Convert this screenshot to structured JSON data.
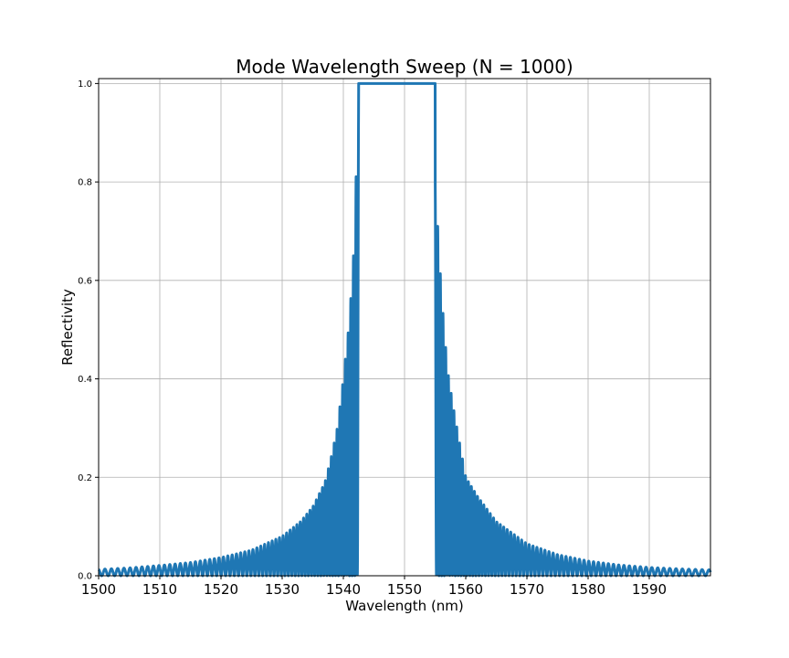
{
  "chart_data": {
    "type": "line",
    "title": "Mode Wavelength Sweep (N = 1000)",
    "xlabel": "Wavelength (nm)",
    "ylabel": "Reflectivity",
    "xlim": [
      1500,
      1600
    ],
    "ylim": [
      0,
      1.01
    ],
    "x_ticks": [
      1500,
      1510,
      1520,
      1530,
      1540,
      1550,
      1560,
      1570,
      1580,
      1590
    ],
    "x_tick_labels": [
      "1500",
      "1510",
      "1520",
      "1530",
      "1540",
      "1550",
      "1560",
      "1570",
      "1580",
      "1590"
    ],
    "y_ticks": [
      0.0,
      0.2,
      0.4,
      0.6,
      0.8,
      1.0
    ],
    "y_tick_labels": [
      "0.0",
      "0.2",
      "0.4",
      "0.6",
      "0.8",
      "1.0"
    ],
    "grid": true,
    "line_color": "#1f77b4",
    "series": [
      {
        "stopband": [
          1542.5,
          1555.0
        ],
        "plateau_value": 1.0,
        "sidelobe_peaks": {
          "x": [
            1500,
            1505,
            1510,
            1515,
            1520,
            1525,
            1530,
            1533,
            1535,
            1537,
            1538,
            1539,
            1540,
            1541,
            1541.8,
            1542.4,
            1555.1,
            1555.6,
            1556.3,
            1557,
            1558,
            1559,
            1560,
            1562,
            1565,
            1570,
            1575,
            1580,
            1585,
            1590,
            1595,
            1600
          ],
          "y": [
            0.013,
            0.016,
            0.021,
            0.027,
            0.037,
            0.052,
            0.08,
            0.11,
            0.14,
            0.19,
            0.24,
            0.3,
            0.4,
            0.52,
            0.68,
            0.96,
            0.8,
            0.66,
            0.53,
            0.42,
            0.34,
            0.27,
            0.2,
            0.16,
            0.11,
            0.065,
            0.043,
            0.03,
            0.022,
            0.017,
            0.014,
            0.012
          ]
        }
      }
    ]
  }
}
